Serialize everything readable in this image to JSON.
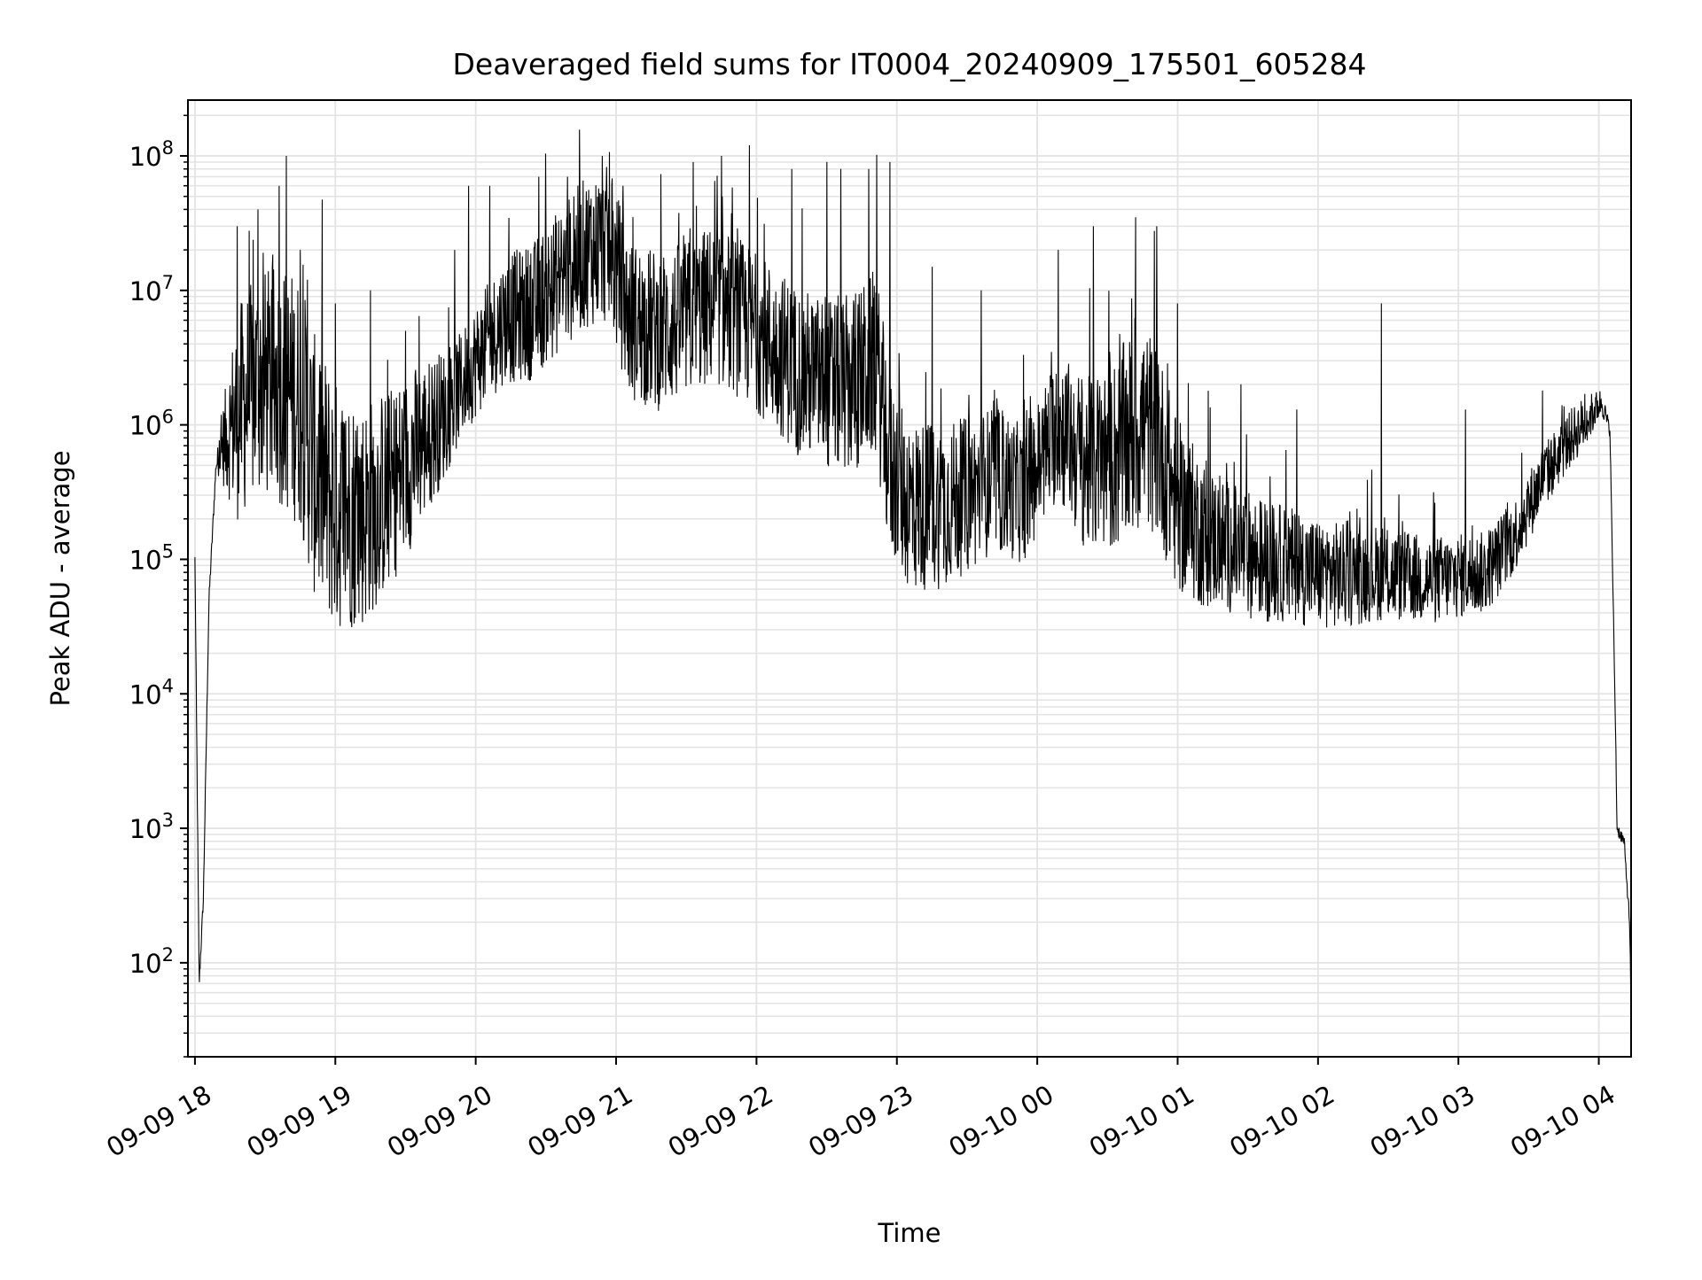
{
  "chart_data": {
    "type": "line",
    "title": "Deaveraged field sums for IT0004_20240909_175501_605284",
    "xlabel": "Time",
    "ylabel": "Peak ADU - average",
    "yscale": "log",
    "ylim": [
      20,
      260000000
    ],
    "xlim_hours": [
      17.95,
      28.23
    ],
    "grid": "major and minor, light gray",
    "legend": "none",
    "line_color": "#000000",
    "x_ticks": [
      {
        "hour": 18,
        "label": "09-09 18"
      },
      {
        "hour": 19,
        "label": "09-09 19"
      },
      {
        "hour": 20,
        "label": "09-09 20"
      },
      {
        "hour": 21,
        "label": "09-09 21"
      },
      {
        "hour": 22,
        "label": "09-09 22"
      },
      {
        "hour": 23,
        "label": "09-09 23"
      },
      {
        "hour": 24,
        "label": "09-10 00"
      },
      {
        "hour": 25,
        "label": "09-10 01"
      },
      {
        "hour": 26,
        "label": "09-10 02"
      },
      {
        "hour": 27,
        "label": "09-10 03"
      },
      {
        "hour": 28,
        "label": "09-10 04"
      }
    ],
    "y_ticks": [
      {
        "value": 100,
        "base": "10",
        "exp": "2"
      },
      {
        "value": 1000,
        "base": "10",
        "exp": "3"
      },
      {
        "value": 10000,
        "base": "10",
        "exp": "4"
      },
      {
        "value": 100000,
        "base": "10",
        "exp": "5"
      },
      {
        "value": 1000000,
        "base": "10",
        "exp": "6"
      },
      {
        "value": 10000000,
        "base": "10",
        "exp": "7"
      },
      {
        "value": 100000000,
        "base": "10",
        "exp": "8"
      }
    ],
    "series": [
      {
        "baseline": [
          [
            18.0,
            100000
          ],
          [
            18.03,
            70
          ],
          [
            18.06,
            300
          ],
          [
            18.1,
            50000
          ],
          [
            18.15,
            500000
          ],
          [
            18.22,
            800000
          ],
          [
            18.3,
            1200000
          ],
          [
            18.45,
            2000000
          ],
          [
            18.6,
            2000000
          ],
          [
            18.75,
            1500000
          ],
          [
            18.85,
            500000
          ],
          [
            19.0,
            250000
          ],
          [
            19.2,
            220000
          ],
          [
            19.4,
            350000
          ],
          [
            19.6,
            700000
          ],
          [
            19.8,
            1300000
          ],
          [
            20.0,
            3000000
          ],
          [
            20.2,
            6000000
          ],
          [
            20.4,
            7000000
          ],
          [
            20.6,
            12000000
          ],
          [
            20.8,
            20000000
          ],
          [
            20.95,
            22000000
          ],
          [
            21.1,
            6000000
          ],
          [
            21.3,
            5000000
          ],
          [
            21.5,
            6000000
          ],
          [
            21.7,
            8000000
          ],
          [
            21.9,
            6000000
          ],
          [
            22.1,
            4000000
          ],
          [
            22.3,
            2500000
          ],
          [
            22.5,
            2000000
          ],
          [
            22.7,
            2000000
          ],
          [
            22.85,
            3000000
          ],
          [
            22.95,
            500000
          ],
          [
            23.1,
            250000
          ],
          [
            23.3,
            250000
          ],
          [
            23.5,
            300000
          ],
          [
            23.7,
            400000
          ],
          [
            23.9,
            300000
          ],
          [
            24.15,
            1000000
          ],
          [
            24.35,
            500000
          ],
          [
            24.55,
            600000
          ],
          [
            24.75,
            1000000
          ],
          [
            24.85,
            800000
          ],
          [
            25.0,
            250000
          ],
          [
            25.2,
            150000
          ],
          [
            25.4,
            120000
          ],
          [
            25.6,
            100000
          ],
          [
            25.8,
            90000
          ],
          [
            26.0,
            80000
          ],
          [
            26.2,
            75000
          ],
          [
            26.4,
            80000
          ],
          [
            26.6,
            75000
          ],
          [
            26.8,
            70000
          ],
          [
            27.0,
            75000
          ],
          [
            27.2,
            80000
          ],
          [
            27.4,
            150000
          ],
          [
            27.6,
            400000
          ],
          [
            27.8,
            800000
          ],
          [
            27.95,
            1200000
          ],
          [
            28.02,
            1500000
          ],
          [
            28.08,
            900000
          ],
          [
            28.12,
            5000
          ],
          [
            28.13,
            1000
          ],
          [
            28.18,
            800
          ],
          [
            28.22,
            200
          ],
          [
            28.23,
            45
          ]
        ],
        "noise_decades": [
          [
            18.0,
            0.05
          ],
          [
            18.15,
            0.05
          ],
          [
            18.3,
            0.8
          ],
          [
            18.9,
            1.0
          ],
          [
            19.5,
            0.7
          ],
          [
            19.9,
            0.4
          ],
          [
            20.3,
            0.5
          ],
          [
            21.0,
            0.6
          ],
          [
            22.0,
            0.6
          ],
          [
            22.9,
            0.7
          ],
          [
            23.4,
            0.6
          ],
          [
            24.0,
            0.5
          ],
          [
            24.7,
            0.8
          ],
          [
            25.3,
            0.5
          ],
          [
            26.5,
            0.35
          ],
          [
            27.3,
            0.3
          ],
          [
            27.9,
            0.2
          ],
          [
            28.08,
            0.05
          ],
          [
            28.23,
            0.05
          ]
        ],
        "spikes": [
          [
            18.3,
            30000000
          ],
          [
            18.45,
            40000000
          ],
          [
            18.6,
            60000000
          ],
          [
            18.65,
            100000000
          ],
          [
            18.75,
            20000000
          ],
          [
            18.8,
            12000000
          ],
          [
            19.0,
            8000000
          ],
          [
            19.25,
            10000000
          ],
          [
            19.5,
            5000000
          ],
          [
            19.85,
            20000000
          ],
          [
            19.95,
            60000000
          ],
          [
            20.1,
            60000000
          ],
          [
            20.45,
            70000000
          ],
          [
            20.7,
            50000000
          ],
          [
            20.9,
            100000000
          ],
          [
            21.05,
            60000000
          ],
          [
            21.55,
            90000000
          ],
          [
            21.75,
            100000000
          ],
          [
            21.95,
            120000000
          ],
          [
            22.25,
            80000000
          ],
          [
            22.5,
            90000000
          ],
          [
            22.6,
            80000000
          ],
          [
            22.8,
            80000000
          ],
          [
            22.95,
            90000000
          ],
          [
            23.25,
            15000000
          ],
          [
            23.6,
            10000000
          ],
          [
            24.15,
            20000000
          ],
          [
            24.4,
            30000000
          ],
          [
            24.7,
            35000000
          ],
          [
            24.85,
            30000000
          ],
          [
            25.0,
            8000000
          ],
          [
            25.45,
            2000000
          ],
          [
            25.85,
            1300000
          ],
          [
            26.45,
            8000000
          ],
          [
            27.05,
            1300000
          ],
          [
            27.6,
            1800000
          ],
          [
            27.9,
            1700000
          ]
        ]
      }
    ]
  }
}
